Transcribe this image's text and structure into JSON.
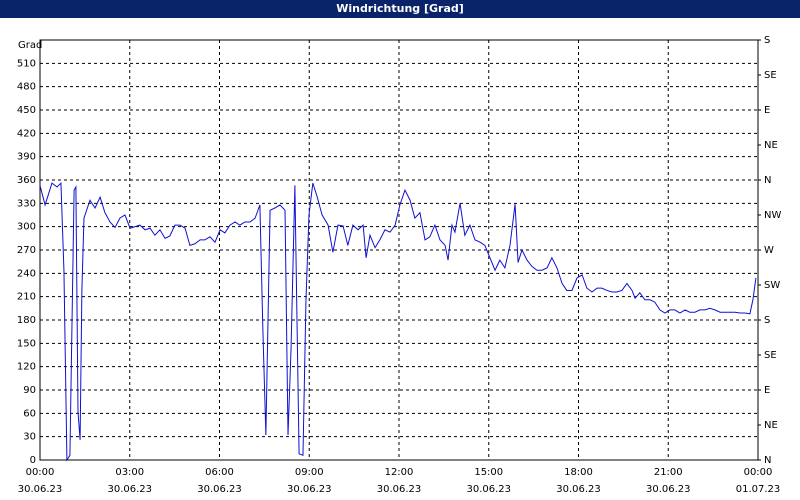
{
  "chart_data": {
    "type": "line",
    "title": "Windrichtung [Grad]",
    "y_label": "Grad",
    "xlim": [
      0,
      24
    ],
    "ylim": [
      0,
      540
    ],
    "y2lim": [
      0,
      540
    ],
    "grid": true,
    "xticks": [
      {
        "value": 0,
        "label": "00:00",
        "date": "30.06.23"
      },
      {
        "value": 3,
        "label": "03:00",
        "date": "30.06.23"
      },
      {
        "value": 6,
        "label": "06:00",
        "date": "30.06.23"
      },
      {
        "value": 9,
        "label": "09:00",
        "date": "30.06.23"
      },
      {
        "value": 12,
        "label": "12:00",
        "date": "30.06.23"
      },
      {
        "value": 15,
        "label": "15:00",
        "date": "30.06.23"
      },
      {
        "value": 18,
        "label": "18:00",
        "date": "30.06.23"
      },
      {
        "value": 21,
        "label": "21:00",
        "date": "30.06.23"
      },
      {
        "value": 24,
        "label": "00:00",
        "date": "01.07.23"
      }
    ],
    "yticks": [
      0,
      30,
      60,
      90,
      120,
      150,
      180,
      210,
      240,
      270,
      300,
      330,
      360,
      390,
      420,
      450,
      480,
      510
    ],
    "y2ticks": [
      {
        "value": 0,
        "label": "N"
      },
      {
        "value": 45,
        "label": "NE"
      },
      {
        "value": 90,
        "label": "E"
      },
      {
        "value": 135,
        "label": "SE"
      },
      {
        "value": 180,
        "label": "S"
      },
      {
        "value": 225,
        "label": "SW"
      },
      {
        "value": 270,
        "label": "W"
      },
      {
        "value": 315,
        "label": "NW"
      },
      {
        "value": 360,
        "label": "N"
      },
      {
        "value": 405,
        "label": "NE"
      },
      {
        "value": 450,
        "label": "E"
      },
      {
        "value": 495,
        "label": "SE"
      },
      {
        "value": 540,
        "label": "S"
      }
    ],
    "x": [
      0,
      0.17,
      0.4,
      0.57,
      0.7,
      0.8,
      0.9,
      1.0,
      1.14,
      1.2,
      1.27,
      1.34,
      1.4,
      1.47,
      1.67,
      1.84,
      2.01,
      2.17,
      2.34,
      2.51,
      2.67,
      2.84,
      3.01,
      3.34,
      3.51,
      3.68,
      3.84,
      4.01,
      4.18,
      4.34,
      4.51,
      4.68,
      4.85,
      5.01,
      5.18,
      5.35,
      5.51,
      5.68,
      5.85,
      6.02,
      6.18,
      6.35,
      6.52,
      6.68,
      6.85,
      7.02,
      7.19,
      7.35,
      7.45,
      7.55,
      7.69,
      7.85,
      8.02,
      8.19,
      8.29,
      8.39,
      8.52,
      8.66,
      8.79,
      8.89,
      8.99,
      9.12,
      9.26,
      9.43,
      9.63,
      9.79,
      9.96,
      10.13,
      10.29,
      10.46,
      10.63,
      10.8,
      10.9,
      11.03,
      11.2,
      11.36,
      11.53,
      11.7,
      11.87,
      12.03,
      12.2,
      12.37,
      12.53,
      12.7,
      12.87,
      13.03,
      13.2,
      13.37,
      13.54,
      13.64,
      13.77,
      13.87,
      14.04,
      14.2,
      14.37,
      14.54,
      14.71,
      14.87,
      15.04,
      15.21,
      15.37,
      15.54,
      15.71,
      15.88,
      15.98,
      16.11,
      16.28,
      16.44,
      16.61,
      16.78,
      16.95,
      17.11,
      17.28,
      17.45,
      17.61,
      17.78,
      17.95,
      18.12,
      18.28,
      18.45,
      18.62,
      18.78,
      18.95,
      19.12,
      19.28,
      19.45,
      19.62,
      19.79,
      19.89,
      20.05,
      20.22,
      20.39,
      20.55,
      20.72,
      20.89,
      21.06,
      21.22,
      21.39,
      21.56,
      21.72,
      21.89,
      22.06,
      22.23,
      22.39,
      22.56,
      22.73,
      22.89,
      23.06,
      23.23,
      23.4,
      23.56,
      23.73,
      23.83,
      23.93
    ],
    "series": [
      {
        "color": "#1010d0",
        "values": [
          353,
          328,
          356,
          351,
          356,
          244,
          0,
          6,
          347,
          351,
          62,
          26,
          218,
          311,
          334,
          324,
          338,
          318,
          306,
          299,
          311,
          315,
          298,
          302,
          296,
          298,
          289,
          296,
          285,
          288,
          302,
          302,
          298,
          276,
          278,
          283,
          283,
          287,
          280,
          296,
          292,
          302,
          306,
          302,
          306,
          306,
          311,
          328,
          167,
          32,
          321,
          324,
          328,
          321,
          32,
          141,
          353,
          8,
          6,
          205,
          315,
          356,
          339,
          315,
          302,
          267,
          302,
          301,
          276,
          302,
          296,
          302,
          260,
          289,
          273,
          283,
          296,
          293,
          302,
          328,
          347,
          334,
          311,
          318,
          283,
          287,
          302,
          283,
          276,
          257,
          302,
          293,
          330,
          289,
          302,
          283,
          280,
          276,
          260,
          244,
          257,
          247,
          276,
          329,
          254,
          270,
          257,
          249,
          244,
          244,
          247,
          260,
          247,
          227,
          218,
          218,
          234,
          238,
          221,
          216,
          221,
          221,
          218,
          216,
          216,
          218,
          227,
          218,
          208,
          215,
          206,
          206,
          203,
          193,
          189,
          193,
          193,
          189,
          193,
          190,
          190,
          193,
          193,
          195,
          193,
          190,
          190,
          190,
          190,
          189,
          189,
          188,
          206,
          234
        ]
      }
    ]
  }
}
